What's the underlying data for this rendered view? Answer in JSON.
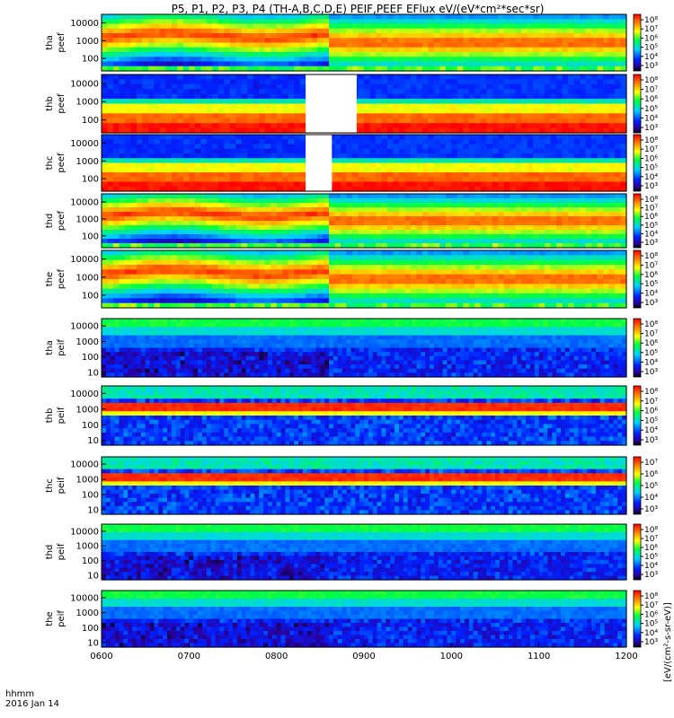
{
  "title": "P5, P1, P2, P3, P4 (TH-A,B,C,D,E) PEIF,PEEF EFlux eV/(eV*cm²*sec*sr)",
  "footer": {
    "time_format": "hhmm",
    "date": "2016 Jan 14"
  },
  "colorbar_unit_label": "[eV/(cm²-s-sr-eV)]",
  "chart_data": {
    "type": "heatmap",
    "x_axis": {
      "ticks": [
        "0600",
        "0700",
        "0800",
        "0900",
        "1000",
        "1100",
        "1200"
      ],
      "range_hours": [
        6,
        12
      ]
    },
    "y_axis": {
      "scale": "log",
      "unit": "eV"
    },
    "panels": [
      {
        "id": "tha-peef",
        "probe": "tha",
        "product": "peef",
        "ylabels": [
          "tha",
          "peef"
        ],
        "yticks": [
          "10000",
          "1000",
          "100"
        ],
        "yrange": [
          20,
          30000
        ],
        "colorbar_ticks": [
          "10⁸",
          "10⁷",
          "10⁶",
          "10⁵",
          "10⁴",
          "10³"
        ],
        "gap": null
      },
      {
        "id": "thb-peef",
        "probe": "thb",
        "product": "peef",
        "ylabels": [
          "thb",
          "peef"
        ],
        "yticks": [
          "10000",
          "1000",
          "100"
        ],
        "yrange": [
          20,
          30000
        ],
        "colorbar_ticks": [
          "10⁸",
          "10⁷",
          "10⁶",
          "10⁵",
          "10⁴",
          "10³"
        ],
        "gap": [
          "0820",
          "0855"
        ]
      },
      {
        "id": "thc-peef",
        "probe": "thc",
        "product": "peef",
        "ylabels": [
          "thc",
          "peef"
        ],
        "yticks": [
          "10000",
          "1000",
          "100"
        ],
        "yrange": [
          20,
          30000
        ],
        "colorbar_ticks": [
          "10⁸",
          "10⁷",
          "10⁶",
          "10⁵",
          "10⁴",
          "10³"
        ],
        "gap": [
          "0820",
          "0838"
        ]
      },
      {
        "id": "thd-peef",
        "probe": "thd",
        "product": "peef",
        "ylabels": [
          "thd",
          "peef"
        ],
        "yticks": [
          "10000",
          "1000",
          "100"
        ],
        "yrange": [
          20,
          30000
        ],
        "colorbar_ticks": [
          "10⁸",
          "10⁷",
          "10⁶",
          "10⁵",
          "10⁴",
          "10³"
        ],
        "gap": null
      },
      {
        "id": "the-peef",
        "probe": "the",
        "product": "peef",
        "ylabels": [
          "the",
          "peef"
        ],
        "yticks": [
          "10000",
          "1000",
          "100"
        ],
        "yrange": [
          20,
          30000
        ],
        "colorbar_ticks": [
          "10⁸",
          "10⁷",
          "10⁶",
          "10⁵",
          "10⁴",
          "10³"
        ],
        "gap": null
      },
      {
        "id": "tha-peif",
        "probe": "tha",
        "product": "peif",
        "ylabels": [
          "tha",
          "peif"
        ],
        "yticks": [
          "10000",
          "1000",
          "100",
          "10"
        ],
        "yrange": [
          5,
          30000
        ],
        "colorbar_ticks": [
          "10⁸",
          "10⁷",
          "10⁶",
          "10⁵",
          "10⁴",
          "10³"
        ],
        "gap": null
      },
      {
        "id": "thb-peif",
        "probe": "thb",
        "product": "peif",
        "ylabels": [
          "thb",
          "peif"
        ],
        "yticks": [
          "10000",
          "1000",
          "100",
          "10"
        ],
        "yrange": [
          5,
          30000
        ],
        "colorbar_ticks": [
          "10⁸",
          "10⁷",
          "10⁶",
          "10⁵",
          "10⁴",
          "10³"
        ],
        "gap": null
      },
      {
        "id": "thc-peif",
        "probe": "thc",
        "product": "peif",
        "ylabels": [
          "thc",
          "peif"
        ],
        "yticks": [
          "10000",
          "1000",
          "100",
          "10"
        ],
        "yrange": [
          5,
          30000
        ],
        "colorbar_ticks": [
          "10⁷",
          "10⁶",
          "10⁵",
          "10⁴",
          "10³"
        ],
        "gap": null
      },
      {
        "id": "thd-peif",
        "probe": "thd",
        "product": "peif",
        "ylabels": [
          "thd",
          "peif"
        ],
        "yticks": [
          "10000",
          "1000",
          "100",
          "10"
        ],
        "yrange": [
          5,
          30000
        ],
        "colorbar_ticks": [
          "10⁸",
          "10⁷",
          "10⁶",
          "10⁵",
          "10⁴",
          "10³"
        ],
        "gap": null
      },
      {
        "id": "the-peif",
        "probe": "the",
        "product": "peif",
        "ylabels": [
          "the",
          "peif"
        ],
        "yticks": [
          "10000",
          "1000",
          "100",
          "10"
        ],
        "yrange": [
          5,
          30000
        ],
        "colorbar_ticks": [
          "10⁸",
          "10⁷",
          "10⁶",
          "10⁵",
          "10⁴",
          "10³"
        ],
        "gap": null
      }
    ]
  }
}
